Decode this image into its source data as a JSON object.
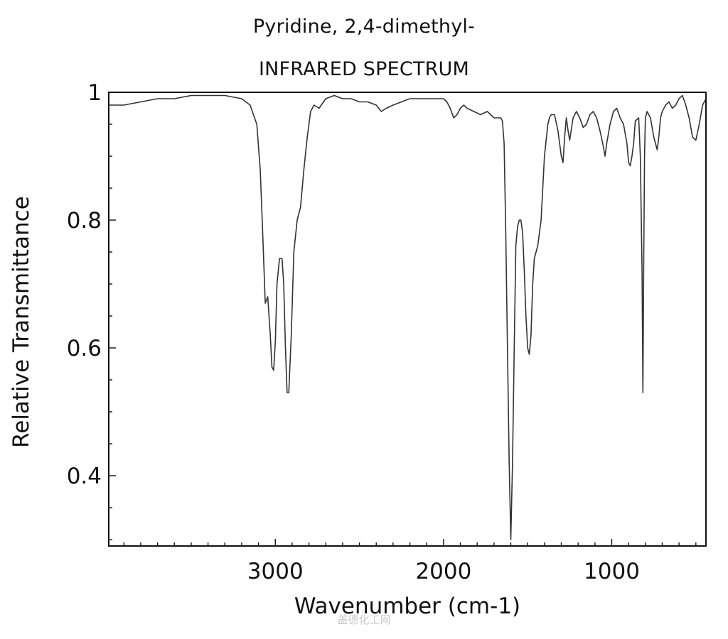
{
  "chart_data": {
    "type": "line",
    "title": "Pyridine, 2,4-dimethyl-",
    "subtitle": "INFRARED SPECTRUM",
    "xlabel": "Wavenumber (cm-1)",
    "ylabel": "Relative Transmittance",
    "xlim": [
      3990,
      440
    ],
    "ylim": [
      0.29,
      1.0
    ],
    "x_axis_reversed": true,
    "x_ticks": [
      3000,
      2000,
      1000
    ],
    "x_tick_labels": [
      "3000",
      "2000",
      "1000"
    ],
    "y_ticks": [
      0.4,
      0.6,
      0.8,
      1.0
    ],
    "y_tick_labels": [
      "0.4",
      "0.6",
      "0.8",
      "1"
    ],
    "grid": false,
    "series": [
      {
        "color": "#333333",
        "x": [
          3990,
          3900,
          3800,
          3700,
          3600,
          3500,
          3400,
          3300,
          3200,
          3150,
          3110,
          3090,
          3075,
          3060,
          3045,
          3030,
          3020,
          3010,
          3000,
          2990,
          2975,
          2960,
          2950,
          2940,
          2930,
          2920,
          2905,
          2890,
          2870,
          2850,
          2830,
          2810,
          2790,
          2770,
          2740,
          2700,
          2650,
          2600,
          2550,
          2500,
          2450,
          2400,
          2370,
          2340,
          2300,
          2250,
          2200,
          2100,
          2000,
          1980,
          1960,
          1940,
          1920,
          1900,
          1880,
          1860,
          1820,
          1780,
          1740,
          1700,
          1680,
          1660,
          1650,
          1640,
          1630,
          1620,
          1610,
          1600,
          1590,
          1580,
          1570,
          1560,
          1550,
          1540,
          1530,
          1520,
          1510,
          1500,
          1490,
          1480,
          1470,
          1460,
          1450,
          1440,
          1420,
          1400,
          1380,
          1370,
          1360,
          1340,
          1320,
          1300,
          1290,
          1280,
          1270,
          1260,
          1250,
          1230,
          1210,
          1190,
          1170,
          1150,
          1130,
          1110,
          1090,
          1070,
          1050,
          1040,
          1030,
          1010,
          990,
          970,
          950,
          930,
          910,
          900,
          890,
          880,
          870,
          860,
          840,
          830,
          820,
          815,
          810,
          805,
          800,
          790,
          770,
          750,
          730,
          720,
          710,
          700,
          680,
          660,
          640,
          620,
          600,
          580,
          560,
          540,
          520,
          500,
          480,
          460,
          440
        ],
        "y": [
          0.98,
          0.98,
          0.985,
          0.99,
          0.99,
          0.995,
          0.995,
          0.995,
          0.99,
          0.98,
          0.95,
          0.88,
          0.78,
          0.67,
          0.68,
          0.62,
          0.57,
          0.565,
          0.61,
          0.7,
          0.74,
          0.74,
          0.7,
          0.6,
          0.53,
          0.53,
          0.62,
          0.75,
          0.8,
          0.82,
          0.88,
          0.93,
          0.97,
          0.98,
          0.975,
          0.99,
          0.995,
          0.99,
          0.99,
          0.985,
          0.985,
          0.98,
          0.97,
          0.975,
          0.98,
          0.985,
          0.99,
          0.99,
          0.99,
          0.985,
          0.975,
          0.96,
          0.965,
          0.975,
          0.98,
          0.975,
          0.97,
          0.965,
          0.97,
          0.96,
          0.96,
          0.96,
          0.955,
          0.92,
          0.78,
          0.6,
          0.42,
          0.3,
          0.42,
          0.6,
          0.76,
          0.79,
          0.8,
          0.8,
          0.78,
          0.72,
          0.65,
          0.6,
          0.59,
          0.62,
          0.7,
          0.74,
          0.75,
          0.76,
          0.8,
          0.9,
          0.95,
          0.96,
          0.965,
          0.965,
          0.94,
          0.9,
          0.89,
          0.93,
          0.96,
          0.94,
          0.925,
          0.96,
          0.97,
          0.96,
          0.945,
          0.95,
          0.965,
          0.97,
          0.96,
          0.94,
          0.915,
          0.9,
          0.92,
          0.95,
          0.97,
          0.975,
          0.96,
          0.95,
          0.92,
          0.89,
          0.885,
          0.9,
          0.92,
          0.955,
          0.96,
          0.9,
          0.72,
          0.53,
          0.74,
          0.9,
          0.96,
          0.97,
          0.96,
          0.93,
          0.91,
          0.93,
          0.96,
          0.97,
          0.98,
          0.985,
          0.975,
          0.98,
          0.99,
          0.995,
          0.98,
          0.96,
          0.93,
          0.925,
          0.95,
          0.98,
          0.99
        ]
      }
    ]
  },
  "watermark": "盖德化工网"
}
